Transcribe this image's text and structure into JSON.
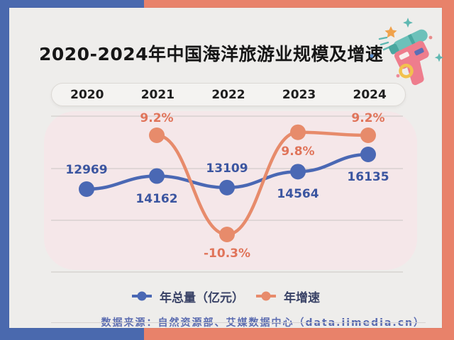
{
  "frame": {
    "left_color": "#4a69ae",
    "right_color": "#e8826a",
    "card_bg": "#eeedeb"
  },
  "title": "2020-2024年中国海洋旅游业规模及增速",
  "years": [
    "2020",
    "2021",
    "2022",
    "2023",
    "2024"
  ],
  "chart_data": {
    "type": "line",
    "categories": [
      "2020",
      "2021",
      "2022",
      "2023",
      "2024"
    ],
    "series": [
      {
        "name": "年总量（亿元）",
        "color": "#4a68b4",
        "label_color": "#3b55a0",
        "values": [
          12969,
          14162,
          13109,
          14564,
          16135
        ],
        "labels": [
          "12969",
          "14162",
          "13109",
          "14564",
          "16135"
        ],
        "label_pos": [
          "above",
          "below",
          "above",
          "below",
          "below"
        ]
      },
      {
        "name": "年增速",
        "color": "#e78b6b",
        "label_color": "#e0745a",
        "values": [
          null,
          9.2,
          -10.3,
          9.8,
          9.2
        ],
        "labels": [
          "",
          "9.2%",
          "-10.3%",
          "9.8%",
          "9.2%"
        ],
        "label_pos": [
          "",
          "above",
          "below",
          "below",
          "above"
        ]
      }
    ],
    "grid": "horizontal-only",
    "legend_position": "bottom",
    "plot_background": "#f5e7e9"
  },
  "source": "数据来源：自然资源部、艾媒数据中心（data.iimedia.cn）",
  "decoration": {
    "icon": "water-gun-with-sparkles"
  }
}
